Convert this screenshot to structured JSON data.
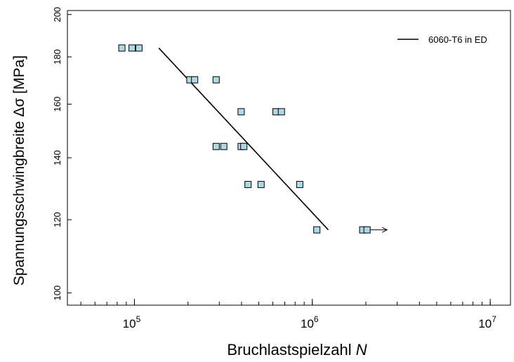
{
  "chart_data": {
    "type": "scatter",
    "title": "",
    "xlabel_prefix": "Bruchlastspielzahl ",
    "xlabel_var": "N",
    "ylabel": "Spannungsschwingbreite Δσ [MPa]",
    "x_scale": "log",
    "y_scale": "log",
    "xlim": [
      42000,
      13000000
    ],
    "ylim": [
      97,
      202
    ],
    "x_ticks": [
      {
        "value": 100000,
        "base": "10",
        "exp": "5"
      },
      {
        "value": 1000000,
        "base": "10",
        "exp": "6"
      },
      {
        "value": 10000000,
        "base": "10",
        "exp": "7"
      }
    ],
    "y_ticks": [
      {
        "value": 100,
        "label": "100"
      },
      {
        "value": 120,
        "label": "120"
      },
      {
        "value": 140,
        "label": "140"
      },
      {
        "value": 160,
        "label": "160"
      },
      {
        "value": 180,
        "label": "180"
      },
      {
        "value": 200,
        "label": "200"
      }
    ],
    "grid": false,
    "legend_position": "top-right",
    "marker_color": "#add8e6",
    "series": [
      {
        "name": "",
        "points": [
          {
            "x": 85000,
            "y": 184
          },
          {
            "x": 97000,
            "y": 184
          },
          {
            "x": 106000,
            "y": 184
          },
          {
            "x": 205000,
            "y": 170
          },
          {
            "x": 218000,
            "y": 170
          },
          {
            "x": 288000,
            "y": 170
          },
          {
            "x": 398000,
            "y": 157
          },
          {
            "x": 625000,
            "y": 157
          },
          {
            "x": 670000,
            "y": 157
          },
          {
            "x": 288000,
            "y": 144
          },
          {
            "x": 318000,
            "y": 144
          },
          {
            "x": 398000,
            "y": 144
          },
          {
            "x": 412000,
            "y": 144
          },
          {
            "x": 435000,
            "y": 131
          },
          {
            "x": 515000,
            "y": 131
          },
          {
            "x": 850000,
            "y": 131
          },
          {
            "x": 1060000,
            "y": 117
          },
          {
            "x": 1920000,
            "y": 117
          },
          {
            "x": 2030000,
            "y": 117
          }
        ],
        "runout": {
          "x": 2030000,
          "y": 117
        }
      }
    ],
    "fit_lines": [
      {
        "name": "6060-T6 in ED",
        "color": "#000000",
        "x": [
          137000,
          1230000
        ],
        "y": [
          184,
          117
        ]
      }
    ]
  }
}
